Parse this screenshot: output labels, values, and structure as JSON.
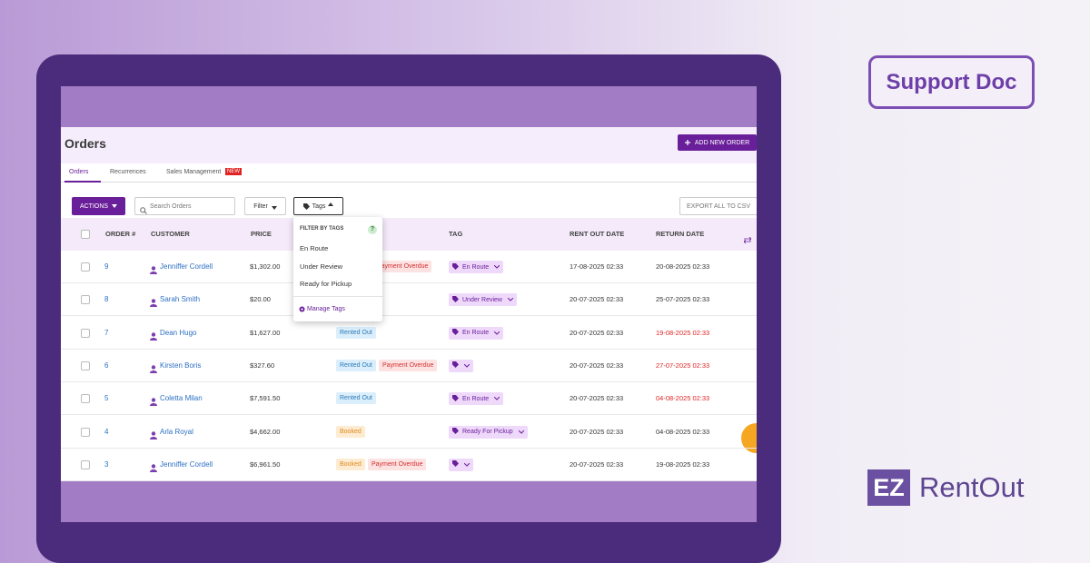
{
  "badge": "Support Doc",
  "brand": {
    "mark": "EZ",
    "name": "RentOut"
  },
  "header": {
    "title": "Orders",
    "add_button": "ADD NEW ORDER"
  },
  "tabs": [
    {
      "label": "Orders"
    },
    {
      "label": "Recurrences"
    },
    {
      "label": "Sales Management",
      "badge": "NEW"
    }
  ],
  "toolbar": {
    "actions": "ACTIONS",
    "search_placeholder": "Search Orders",
    "filter": "Filter",
    "tags": "Tags",
    "export": "EXPORT ALL TO CSV"
  },
  "dropdown": {
    "title": "FILTER BY TAGS",
    "help": "?",
    "options": [
      "En Route",
      "Under Review",
      "Ready for Pickup"
    ],
    "manage": "Manage Tags"
  },
  "table": {
    "columns": [
      "ORDER #",
      "CUSTOMER",
      "PRICE",
      "TAG",
      "RENT OUT DATE",
      "RETURN DATE"
    ],
    "rows": [
      {
        "order": "9",
        "customer": "Jenniffer Cordell",
        "price": "$1,302.00",
        "statuses": [
          {
            "label": "Payment Overdue",
            "bg": "#fde2e2",
            "fg": "#d32f2f"
          }
        ],
        "tag": "En Route",
        "rent_out": "17-08-2025 02:33",
        "return": "20-08-2025 02:33",
        "return_color": "#333333"
      },
      {
        "order": "8",
        "customer": "Sarah Smith",
        "price": "$20.00",
        "statuses": [],
        "tag": "Under Review",
        "rent_out": "20-07-2025 02:33",
        "return": "25-07-2025 02:33",
        "return_color": "#333333"
      },
      {
        "order": "7",
        "customer": "Dean Hugo",
        "price": "$1,627.00",
        "statuses": [
          {
            "label": "Rented Out",
            "bg": "#dbeefb",
            "fg": "#2b7bb9"
          }
        ],
        "tag": "En Route",
        "rent_out": "20-07-2025 02:33",
        "return": "19-08-2025 02:33",
        "return_color": "#e02424"
      },
      {
        "order": "6",
        "customer": "Kirsten Boris",
        "price": "$327.60",
        "statuses": [
          {
            "label": "Rented Out",
            "bg": "#dbeefb",
            "fg": "#2b7bb9"
          },
          {
            "label": "Payment Overdue",
            "bg": "#fde2e2",
            "fg": "#d32f2f"
          }
        ],
        "tag": null,
        "rent_out": "20-07-2025 02:33",
        "return": "27-07-2025 02:33",
        "return_color": "#e02424"
      },
      {
        "order": "5",
        "customer": "Coletta Milan",
        "price": "$7,591.50",
        "statuses": [
          {
            "label": "Rented Out",
            "bg": "#dbeefb",
            "fg": "#2b7bb9"
          }
        ],
        "tag": "En Route",
        "rent_out": "20-07-2025 02:33",
        "return": "04-08-2025 02:33",
        "return_color": "#e02424"
      },
      {
        "order": "4",
        "customer": "Arla Royal",
        "price": "$4,662.00",
        "statuses": [
          {
            "label": "Booked",
            "bg": "#fdecd2",
            "fg": "#e08a1e"
          }
        ],
        "tag": "Ready For Pickup",
        "rent_out": "20-07-2025 02:33",
        "return": "04-08-2025 02:33",
        "return_color": "#333333"
      },
      {
        "order": "3",
        "customer": "Jenniffer Cordell",
        "price": "$6,961.50",
        "statuses": [
          {
            "label": "Booked",
            "bg": "#fdecd2",
            "fg": "#e08a1e"
          },
          {
            "label": "Payment Overdue",
            "bg": "#fde2e2",
            "fg": "#d32f2f"
          }
        ],
        "tag": null,
        "rent_out": "20-07-2025 02:33",
        "return": "19-08-2025 02:33",
        "return_color": "#333333"
      }
    ]
  }
}
